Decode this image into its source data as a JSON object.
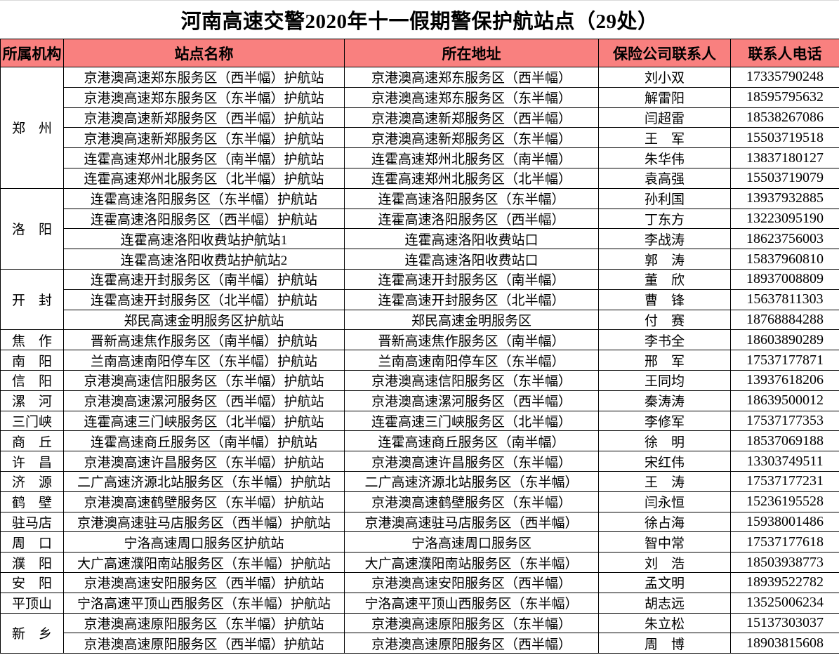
{
  "title": "河南高速交警2020年十一假期警保护航站点（29处）",
  "colors": {
    "header_bg": "#F9807F",
    "border": "#000000",
    "text": "#000000"
  },
  "table": {
    "columns": [
      "所属机构",
      "站点名称",
      "所在地址",
      "保险公司联系人",
      "联系人电话"
    ],
    "groups": [
      {
        "org": "郑　州",
        "rows": [
          {
            "station": "京港澳高速郑东服务区（西半幅）护航站",
            "address": "京港澳高速郑东服务区（西半幅）",
            "contact": "刘小双",
            "phone": "17335790248"
          },
          {
            "station": "京港澳高速郑东服务区（东半幅）护航站",
            "address": "京港澳高速郑东服务区（东半幅）",
            "contact": "解雷阳",
            "phone": "18595795632"
          },
          {
            "station": "京港澳高速新郑服务区（西半幅）护航站",
            "address": "京港澳高速新郑服务区（西半幅）",
            "contact": "闫超雷",
            "phone": "18538267086"
          },
          {
            "station": "京港澳高速新郑服务区（东半幅）护航站",
            "address": "京港澳高速新郑服务区（东半幅）",
            "contact": "王　军",
            "phone": "15503719518"
          },
          {
            "station": "连霍高速郑州北服务区（南半幅）护航站",
            "address": "连霍高速郑州北服务区（南半幅）",
            "contact": "朱华伟",
            "phone": "13837180127"
          },
          {
            "station": "连霍高速郑州北服务区（北半幅）护航站",
            "address": "连霍高速郑州北服务区（北半幅）",
            "contact": "袁高强",
            "phone": "15503719079"
          }
        ]
      },
      {
        "org": "洛　阳",
        "rows": [
          {
            "station": "连霍高速洛阳服务区（东半幅）护航站",
            "address": "连霍高速洛阳服务区（东半幅）",
            "contact": "孙利国",
            "phone": "13937932885"
          },
          {
            "station": "连霍高速洛阳服务区（西半幅）护航站",
            "address": "连霍高速洛阳服务区（西半幅）",
            "contact": "丁东方",
            "phone": "13223095190"
          },
          {
            "station": "连霍高速洛阳收费站护航站1",
            "address": "连霍高速洛阳收费站口",
            "contact": "李战涛",
            "phone": "18623756003"
          },
          {
            "station": "连霍高速洛阳收费站护航站2",
            "address": "连霍高速洛阳收费站口",
            "contact": "郭　涛",
            "phone": "15837960810"
          }
        ]
      },
      {
        "org": "开　封",
        "rows": [
          {
            "station": "连霍高速开封服务区（南半幅）护航站",
            "address": "连霍高速开封服务区（南半幅）",
            "contact": "董　欣",
            "phone": "18937008809"
          },
          {
            "station": "连霍高速开封服务区（北半幅）护航站",
            "address": "连霍高速开封服务区（北半幅）",
            "contact": "曹　锋",
            "phone": "15637811303"
          },
          {
            "station": "郑民高速金明服务区护航站",
            "address": "郑民高速金明服务区",
            "contact": "付　赛",
            "phone": "18768884288"
          }
        ]
      },
      {
        "org": "焦　作",
        "rows": [
          {
            "station": "晋新高速焦作服务区（南半幅）护航站",
            "address": "晋新高速焦作服务区（南半幅）",
            "contact": "李书全",
            "phone": "18603890289"
          }
        ]
      },
      {
        "org": "南　阳",
        "rows": [
          {
            "station": "兰南高速南阳停车区（东半幅）护航站",
            "address": "兰南高速南阳停车区（东半幅）",
            "contact": "邢　军",
            "phone": "17537177871"
          }
        ]
      },
      {
        "org": "信　阳",
        "rows": [
          {
            "station": "京港澳高速信阳服务区（东半幅）护航站",
            "address": "京港澳高速信阳服务区（东半幅）",
            "contact": "王同均",
            "phone": "13937618206"
          }
        ]
      },
      {
        "org": "漯　河",
        "rows": [
          {
            "station": "京港澳高速漯河服务区（西半幅）护航站",
            "address": "京港澳高速漯河服务区（西半幅）",
            "contact": "秦涛涛",
            "phone": "18639500012"
          }
        ]
      },
      {
        "org": "三门峡",
        "rows": [
          {
            "station": "连霍高速三门峡服务区（北半幅）护航站",
            "address": "连霍高速三门峡服务区（北半幅）",
            "contact": "李修军",
            "phone": "17537177353"
          }
        ]
      },
      {
        "org": "商　丘",
        "rows": [
          {
            "station": "连霍高速商丘服务区（南半幅）护航站",
            "address": "连霍高速商丘服务区（南半幅）",
            "contact": "徐　明",
            "phone": "18537069188"
          }
        ]
      },
      {
        "org": "许　昌",
        "rows": [
          {
            "station": "京港澳高速许昌服务区（东半幅）护航站",
            "address": "京港澳高速许昌服务区（东半幅）",
            "contact": "宋红伟",
            "phone": "13303749511"
          }
        ]
      },
      {
        "org": "济　源",
        "rows": [
          {
            "station": "二广高速济源北站服务区（东半幅）护航站",
            "address": "二广高速济源北站服务区（东半幅）",
            "contact": "王　涛",
            "phone": "17537177231"
          }
        ]
      },
      {
        "org": "鹤　壁",
        "rows": [
          {
            "station": "京港澳高速鹤壁服务区（东半幅）护航站",
            "address": "京港澳高速鹤壁服务区（东半幅）",
            "contact": "闫永恒",
            "phone": "15236195528"
          }
        ]
      },
      {
        "org": "驻马店",
        "rows": [
          {
            "station": "京港澳高速驻马店服务区（西半幅）护航站",
            "address": "京港澳高速驻马店服务区（西半幅）",
            "contact": "徐占海",
            "phone": "15938001486"
          }
        ]
      },
      {
        "org": "周　口",
        "rows": [
          {
            "station": "宁洛高速周口服务区护航站",
            "address": "宁洛高速周口服务区",
            "contact": "智中常",
            "phone": "17537177618"
          }
        ]
      },
      {
        "org": "濮　阳",
        "rows": [
          {
            "station": "大广高速濮阳南站服务区（东半幅）护航站",
            "address": "大广高速濮阳南站服务区（东半幅）",
            "contact": "刘　浩",
            "phone": "18503938773"
          }
        ]
      },
      {
        "org": "安　阳",
        "rows": [
          {
            "station": "京港澳高速安阳服务区（西半幅）护航站",
            "address": "京港澳高速安阳服务区（西半幅）",
            "contact": "孟文明",
            "phone": "18939522782"
          }
        ]
      },
      {
        "org": "平顶山",
        "rows": [
          {
            "station": "宁洛高速平顶山西服务区（东半幅）护航站",
            "address": "宁洛高速平顶山西服务区（东半幅）",
            "contact": "胡志远",
            "phone": "13525006234"
          }
        ]
      },
      {
        "org": "新　乡",
        "rows": [
          {
            "station": "京港澳高速原阳服务区（东半幅）护航站",
            "address": "京港澳高速原阳服务区（东半幅）",
            "contact": "朱立松",
            "phone": "15137303037"
          },
          {
            "station": "京港澳高速原阳服务区（西半幅）护航站",
            "address": "京港澳高速原阳服务区（西半幅）",
            "contact": "周　博",
            "phone": "18903815608"
          }
        ]
      }
    ]
  }
}
